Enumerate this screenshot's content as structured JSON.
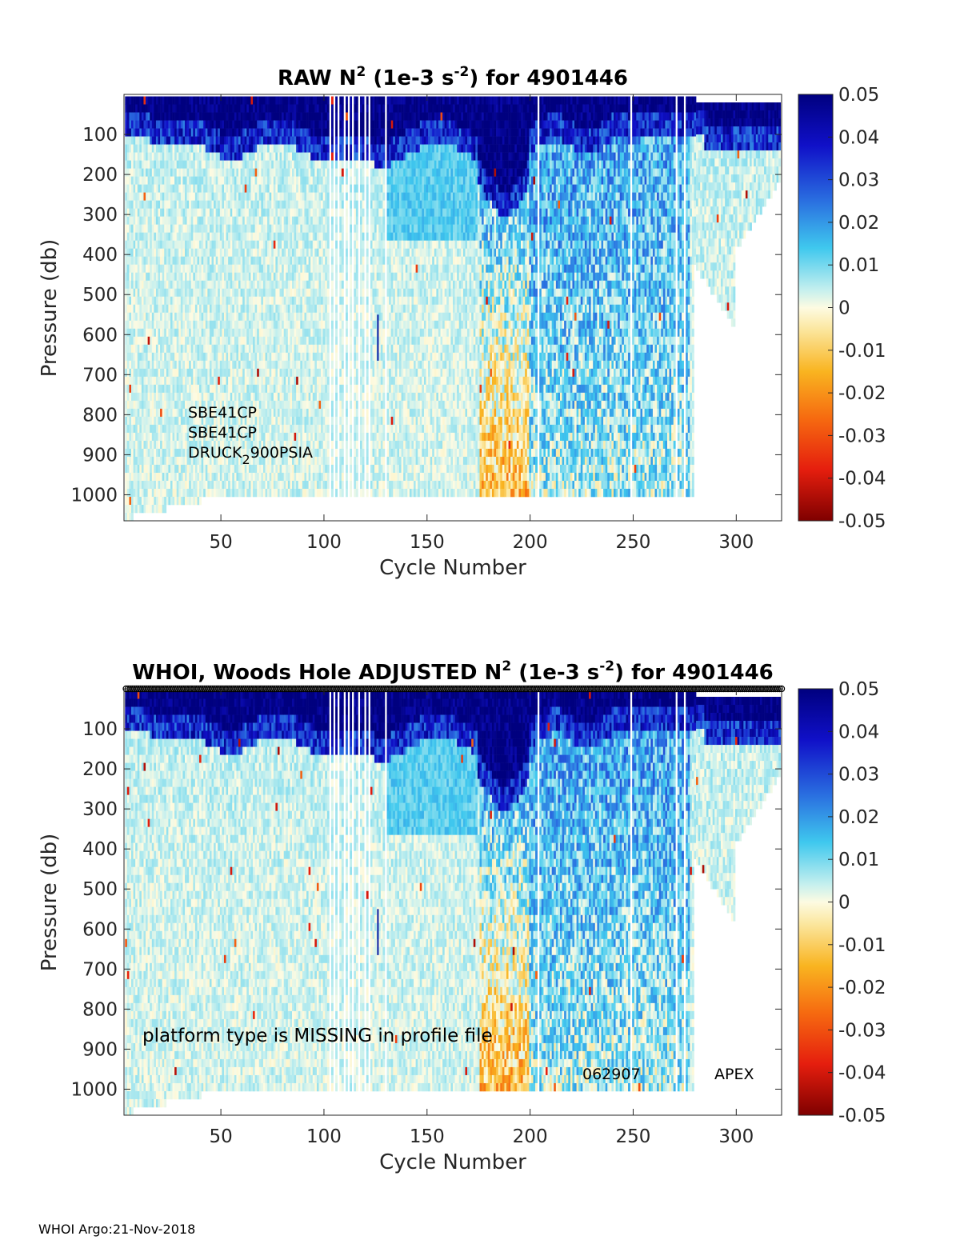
{
  "chart_data": [
    {
      "type": "heatmap",
      "title_main": "RAW N",
      "title_sup": "2",
      "title_mid": " (1e-3 s",
      "title_sup2": "-2",
      "title_end": ") for 4901446",
      "xlabel": "Cycle Number",
      "ylabel": "Pressure (db)",
      "xlim": [
        3,
        322
      ],
      "ylim": [
        0,
        1065
      ],
      "y_reversed": true,
      "xticks": [
        "50",
        "100",
        "150",
        "200",
        "250",
        "300"
      ],
      "yticks": [
        "100",
        "200",
        "300",
        "400",
        "500",
        "600",
        "700",
        "800",
        "900",
        "1000"
      ],
      "colorbar": {
        "range": [
          -0.05,
          0.05
        ],
        "ticks": [
          "0.05",
          "0.04",
          "0.03",
          "0.02",
          "0.01",
          "0",
          "-0.01",
          "-0.02",
          "-0.03",
          "-0.04",
          "-0.05"
        ],
        "colormap": "blue-cyan-white-yellow-red"
      },
      "annotations": {
        "sensor1": "SBE41CP",
        "sensor2": "SBE41CP",
        "sensor3_pre": "DRUCK",
        "sensor3_sub": "2",
        "sensor3_post": "900PSIA"
      }
    },
    {
      "type": "heatmap",
      "title_main": "WHOI, Woods Hole  ADJUSTED N",
      "title_sup": "2",
      "title_mid": " (1e-3 s",
      "title_sup2": "-2",
      "title_end": ") for 4901446",
      "xlabel": "Cycle Number",
      "ylabel": "Pressure (db)",
      "xlim": [
        3,
        322
      ],
      "ylim": [
        0,
        1065
      ],
      "y_reversed": true,
      "xticks": [
        "50",
        "100",
        "150",
        "200",
        "250",
        "300"
      ],
      "yticks": [
        "100",
        "200",
        "300",
        "400",
        "500",
        "600",
        "700",
        "800",
        "900",
        "1000"
      ],
      "colorbar": {
        "range": [
          -0.05,
          0.05
        ],
        "ticks": [
          "0.05",
          "0.04",
          "0.03",
          "0.02",
          "0.01",
          "0",
          "-0.01",
          "-0.02",
          "-0.03",
          "-0.04",
          "-0.05"
        ],
        "colormap": "blue-cyan-white-yellow-red"
      },
      "annotations": {
        "platform_note": "platform type is MISSING in profile file",
        "float_id": "062907",
        "platform": "APEX"
      }
    }
  ],
  "footer": "WHOI Argo:21-Nov-2018"
}
